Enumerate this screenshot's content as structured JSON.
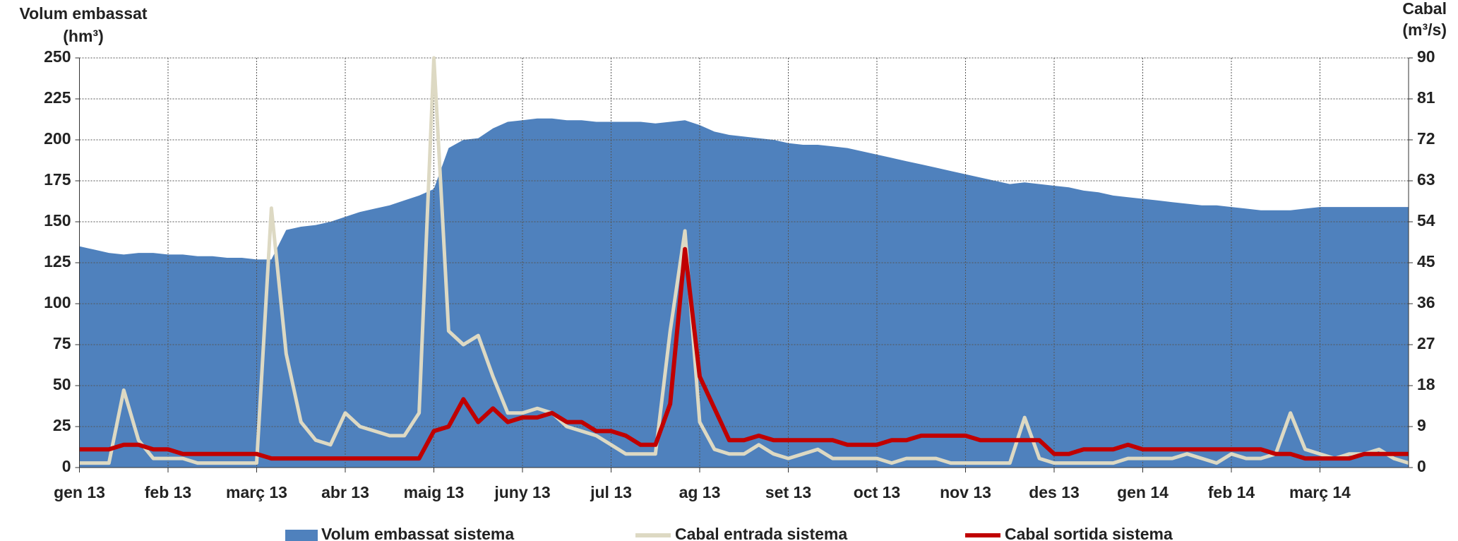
{
  "chart_data": {
    "type": "area_line",
    "y_label_line1": "Volum embassat",
    "y_label_line2": "(hm³)",
    "y2_label_line1": "Cabal",
    "y2_label_line2": "(m³/s)",
    "categories": [
      "gen 13",
      null,
      null,
      null,
      null,
      null,
      "feb 13",
      null,
      null,
      null,
      null,
      null,
      "març 13",
      null,
      null,
      null,
      null,
      null,
      "abr 13",
      null,
      null,
      null,
      null,
      null,
      "maig 13",
      null,
      null,
      null,
      null,
      null,
      "juny 13",
      null,
      null,
      null,
      null,
      null,
      "jul 13",
      null,
      null,
      null,
      null,
      null,
      "ag 13",
      null,
      null,
      null,
      null,
      null,
      "set 13",
      null,
      null,
      null,
      null,
      null,
      "oct 13",
      null,
      null,
      null,
      null,
      null,
      "nov 13",
      null,
      null,
      null,
      null,
      null,
      "des 13",
      null,
      null,
      null,
      null,
      null,
      "gen 14",
      null,
      null,
      null,
      null,
      null,
      "feb 14",
      null,
      null,
      null,
      null,
      null,
      "març 14",
      null,
      null,
      null,
      null,
      null,
      null
    ],
    "series": [
      {
        "name": "Volum embassat sistema",
        "color": "#4f81bd",
        "kind": "area",
        "axis": "y",
        "values": [
          135,
          133,
          131,
          130,
          131,
          131,
          130,
          130,
          129,
          129,
          128,
          128,
          127,
          127,
          145,
          147,
          148,
          150,
          153,
          156,
          158,
          160,
          163,
          166,
          170,
          195,
          200,
          201,
          207,
          211,
          212,
          213,
          213,
          212,
          212,
          211,
          211,
          211,
          211,
          210,
          211,
          212,
          209,
          205,
          203,
          202,
          201,
          200,
          198,
          197,
          197,
          196,
          195,
          193,
          191,
          189,
          187,
          185,
          183,
          181,
          179,
          177,
          175,
          173,
          174,
          173,
          172,
          171,
          169,
          168,
          166,
          165,
          164,
          163,
          162,
          161,
          160,
          160,
          159,
          158,
          157,
          157,
          157,
          158,
          159,
          159,
          159,
          159,
          159,
          159,
          159
        ]
      },
      {
        "name": "Cabal entrada sistema",
        "color": "#ddd9c3",
        "kind": "line",
        "axis": "y2",
        "values": [
          1,
          1,
          1,
          17,
          6,
          2,
          2,
          2,
          1,
          1,
          1,
          1,
          1,
          57,
          25,
          10,
          6,
          5,
          12,
          9,
          8,
          7,
          7,
          12,
          90,
          30,
          27,
          29,
          20,
          12,
          12,
          13,
          12,
          9,
          8,
          7,
          5,
          3,
          3,
          3,
          30,
          52,
          10,
          4,
          3,
          3,
          5,
          3,
          2,
          3,
          4,
          2,
          2,
          2,
          2,
          1,
          2,
          2,
          2,
          1,
          1,
          1,
          1,
          1,
          11,
          2,
          1,
          1,
          1,
          1,
          1,
          2,
          2,
          2,
          2,
          3,
          2,
          1,
          3,
          2,
          2,
          3,
          12,
          4,
          3,
          2,
          3,
          3,
          4,
          2,
          1
        ]
      },
      {
        "name": "Cabal sortida sistema",
        "color": "#c00000",
        "kind": "line",
        "axis": "y2",
        "values": [
          4,
          4,
          4,
          5,
          5,
          4,
          4,
          3,
          3,
          3,
          3,
          3,
          3,
          2,
          2,
          2,
          2,
          2,
          2,
          2,
          2,
          2,
          2,
          2,
          8,
          9,
          15,
          10,
          13,
          10,
          11,
          11,
          12,
          10,
          10,
          8,
          8,
          7,
          5,
          5,
          14,
          48,
          20,
          13,
          6,
          6,
          7,
          6,
          6,
          6,
          6,
          6,
          5,
          5,
          5,
          6,
          6,
          7,
          7,
          7,
          7,
          6,
          6,
          6,
          6,
          6,
          3,
          3,
          4,
          4,
          4,
          5,
          4,
          4,
          4,
          4,
          4,
          4,
          4,
          4,
          4,
          3,
          3,
          2,
          2,
          2,
          2,
          3,
          3,
          3,
          3
        ]
      }
    ],
    "ylim": [
      0,
      250
    ],
    "yticks": [
      0,
      25,
      50,
      75,
      100,
      125,
      150,
      175,
      200,
      225,
      250
    ],
    "y2lim": [
      0,
      90
    ],
    "y2ticks": [
      0,
      9,
      18,
      27,
      36,
      45,
      54,
      63,
      72,
      81,
      90
    ],
    "grid": true
  }
}
